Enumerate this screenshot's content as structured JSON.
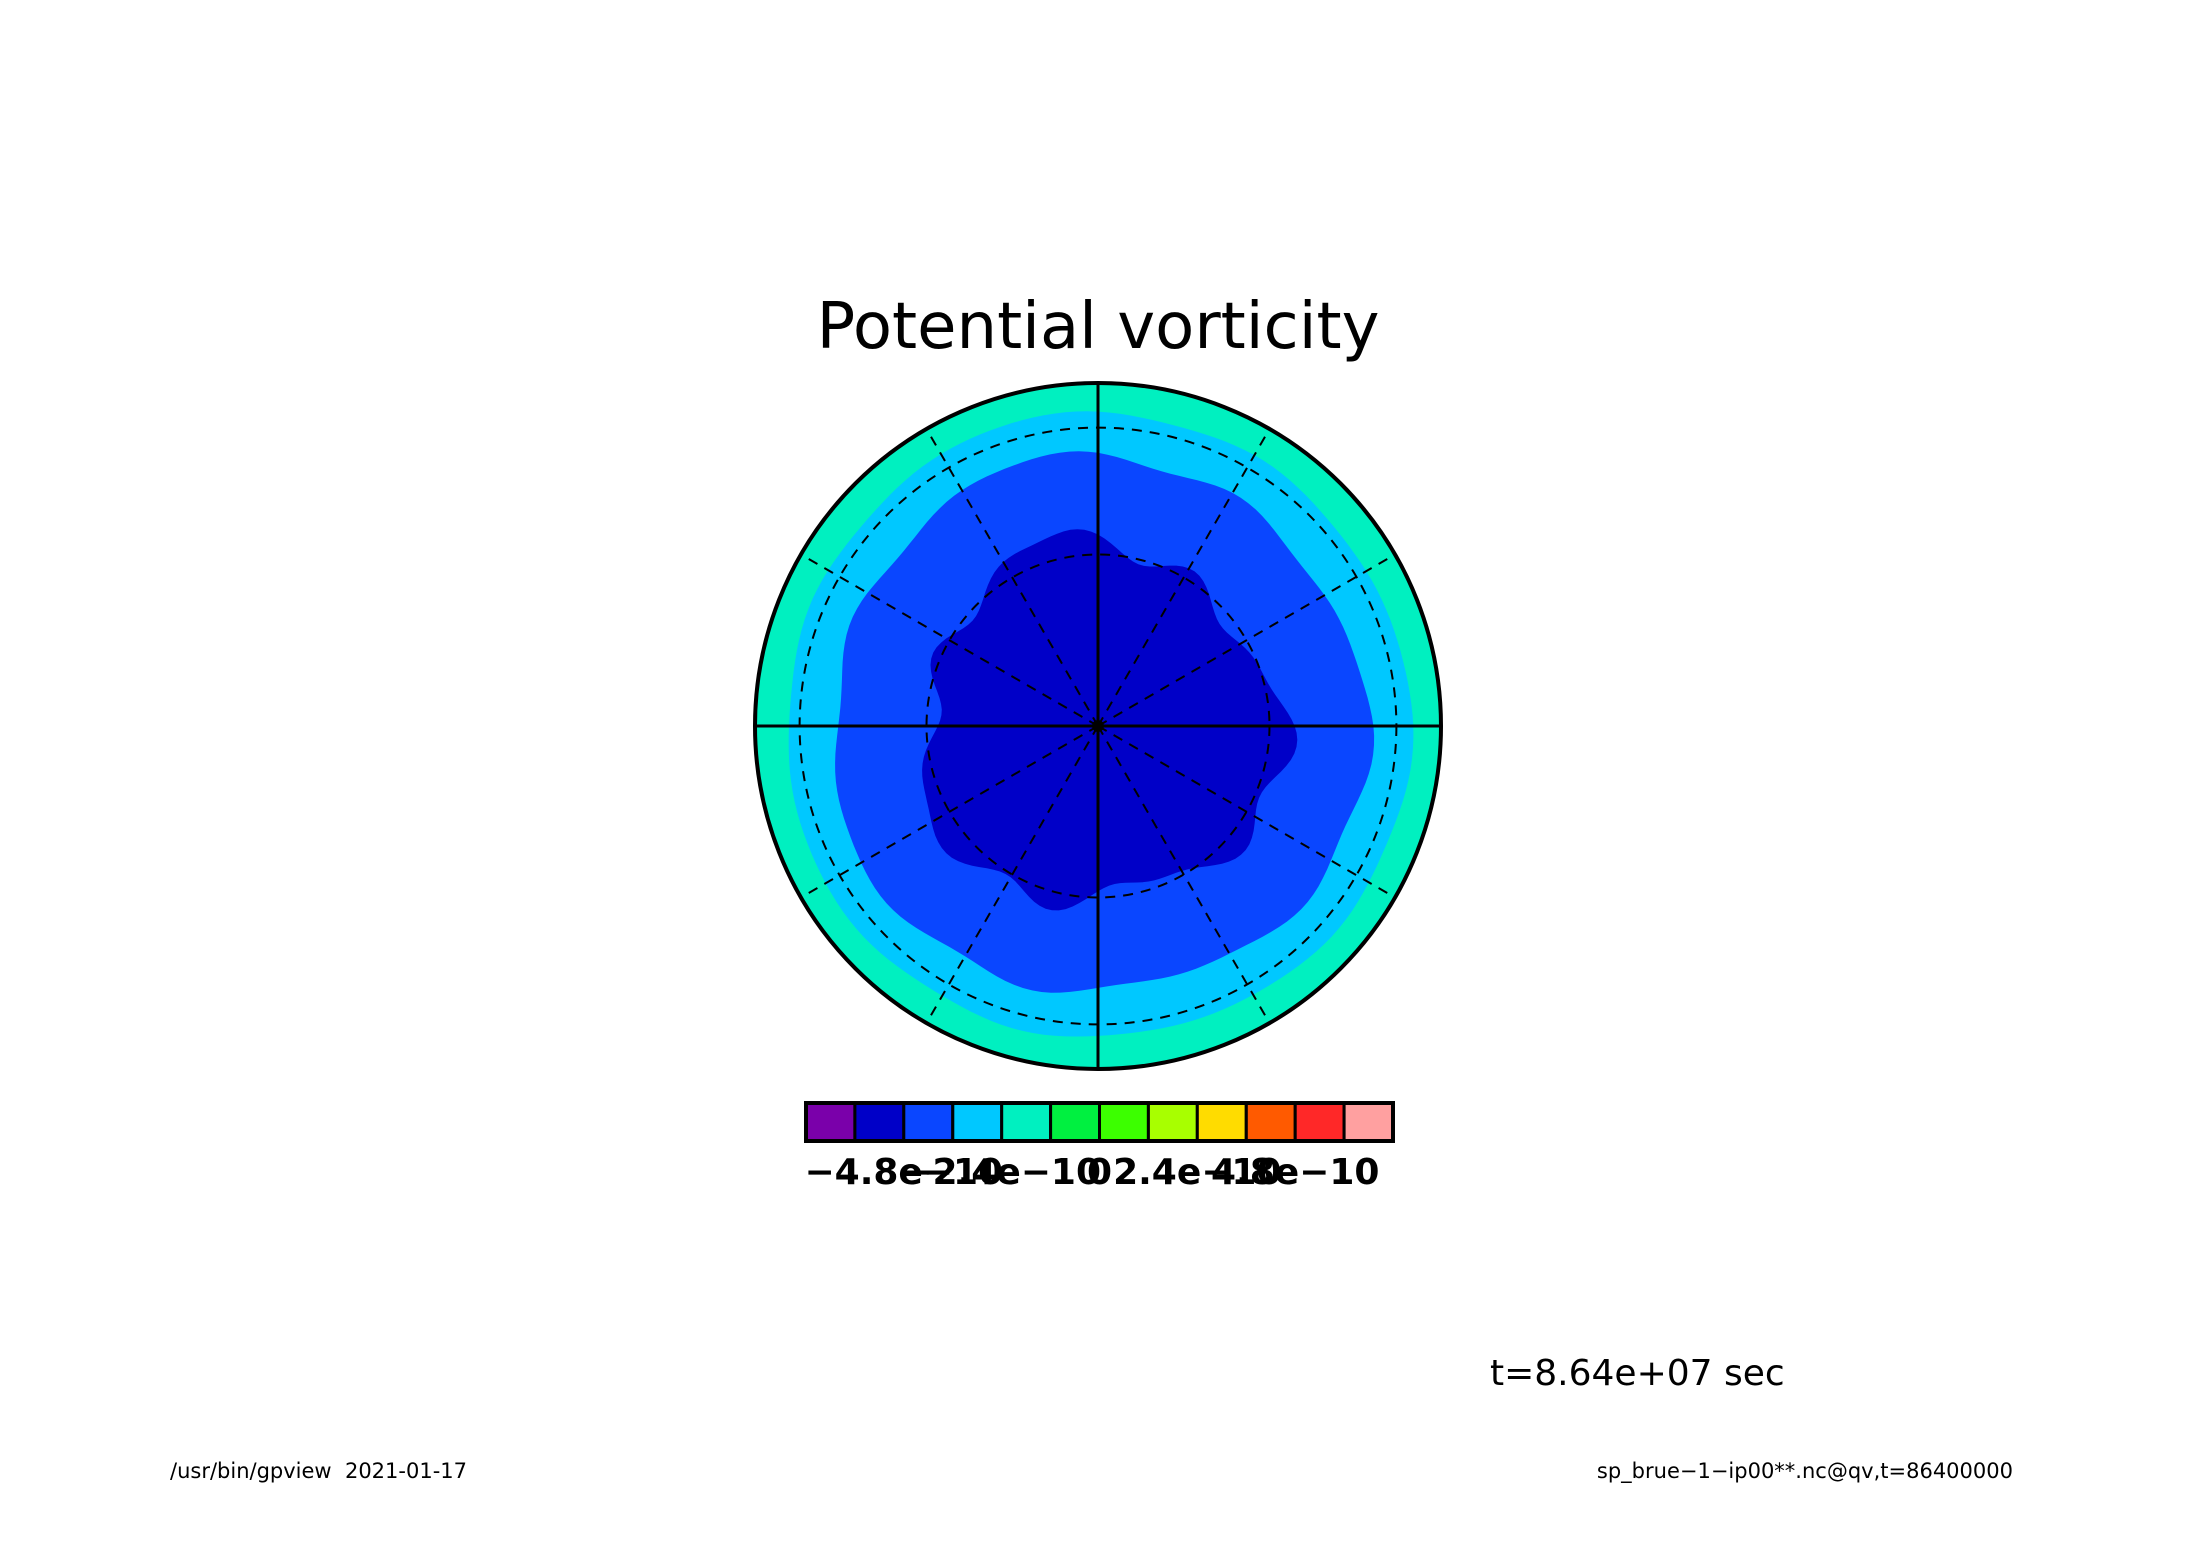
{
  "chart_data": {
    "type": "contour-fill",
    "projection": "polar",
    "title": "Potential vorticity",
    "colorbar": {
      "levels": [
        {
          "color": "#7a00aa"
        },
        {
          "color": "#0000c8"
        },
        {
          "color": "#0a46ff"
        },
        {
          "color": "#00c8ff"
        },
        {
          "color": "#00f0c0"
        },
        {
          "color": "#00f040"
        },
        {
          "color": "#3cff00"
        },
        {
          "color": "#a8ff00"
        },
        {
          "color": "#ffdc00"
        },
        {
          "color": "#ff5a00"
        },
        {
          "color": "#ff2828"
        },
        {
          "color": "#ffa0a0"
        }
      ],
      "tick_labels": [
        {
          "text": "−4.8e−10",
          "value": -4.8e-10
        },
        {
          "text": "−2.4e−10",
          "value": -2.4e-10
        },
        {
          "text": "0",
          "value": 0
        },
        {
          "text": "2.4e−10",
          "value": 2.4e-10
        },
        {
          "text": "4.8e−10",
          "value": 4.8e-10
        }
      ],
      "range": [
        -7.2e-10,
        7.2e-10
      ]
    },
    "contour_field_bands": [
      {
        "band": "outer ring",
        "color": "#00f0c0"
      },
      {
        "band": "ring 2",
        "color": "#00c8ff"
      },
      {
        "band": "ring 3",
        "color": "#0a46ff"
      },
      {
        "band": "core",
        "color": "#0000c8"
      }
    ],
    "grid": true
  },
  "time_label": "t=8.64e+07 sec",
  "footer": {
    "left": "/usr/bin/gpview  2021-01-17",
    "right": "sp_brue−1−ip00**.nc@qv,t=86400000"
  }
}
